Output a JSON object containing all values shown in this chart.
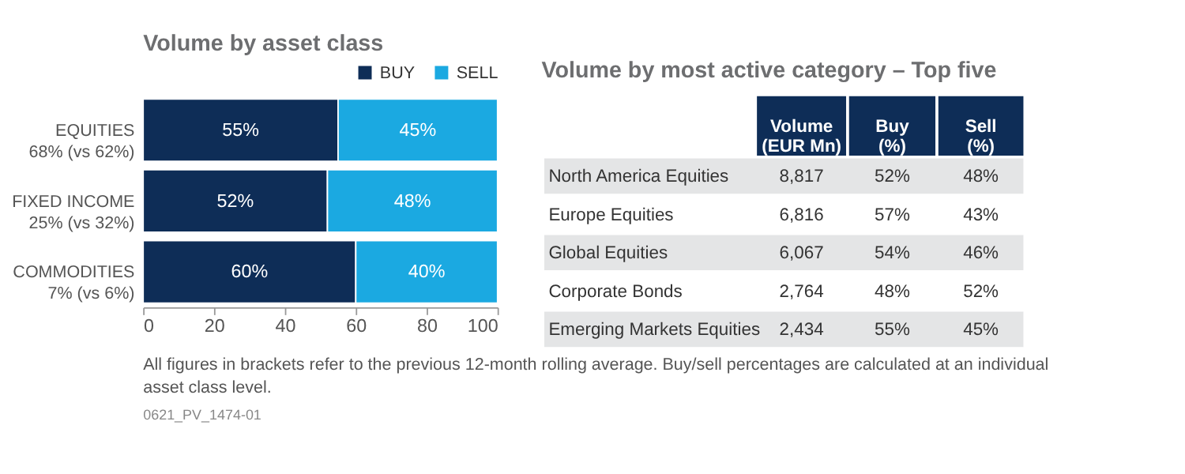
{
  "chart_data": [
    {
      "type": "bar",
      "orientation": "horizontal",
      "stacked": true,
      "title": "Volume by asset class",
      "categories": [
        "EQUITIES\n68% (vs 62%)",
        "FIXED INCOME\n25% (vs 32%)",
        "COMMODITIES\n7% (vs 6%)"
      ],
      "series": [
        {
          "name": "BUY",
          "color": "#0e2d57",
          "values": [
            55,
            52,
            60
          ],
          "value_labels": [
            "55%",
            "52%",
            "60%"
          ]
        },
        {
          "name": "SELL",
          "color": "#1ba9e1",
          "values": [
            45,
            48,
            40
          ],
          "value_labels": [
            "45%",
            "48%",
            "40%"
          ]
        }
      ],
      "xlim": [
        0,
        100
      ],
      "xticks": [
        0,
        20,
        40,
        60,
        80,
        100
      ],
      "legend": "top right",
      "annotations": [
        "All figures in brackets refer to the previous 12-month rolling average. Buy/sell percentages are calculated at an individual asset class level.",
        "0621_PV_1474-01"
      ]
    },
    {
      "type": "other",
      "title": "Volume by most active category – Top five",
      "categories": [
        "Volume (EUR Mn)",
        "Buy (%)",
        "Sell (%)"
      ],
      "y_categories": [
        "North America Equities",
        "Europe Equities",
        "Global Equities",
        "Corporate Bonds",
        "Emerging Markets Equities"
      ],
      "cell_labels": [
        [
          "8,817",
          "52%",
          "48%"
        ],
        [
          "6,816",
          "57%",
          "43%"
        ],
        [
          "6,067",
          "54%",
          "46%"
        ],
        [
          "2,764",
          "48%",
          "52%"
        ],
        [
          "2,434",
          "55%",
          "45%"
        ]
      ]
    }
  ]
}
